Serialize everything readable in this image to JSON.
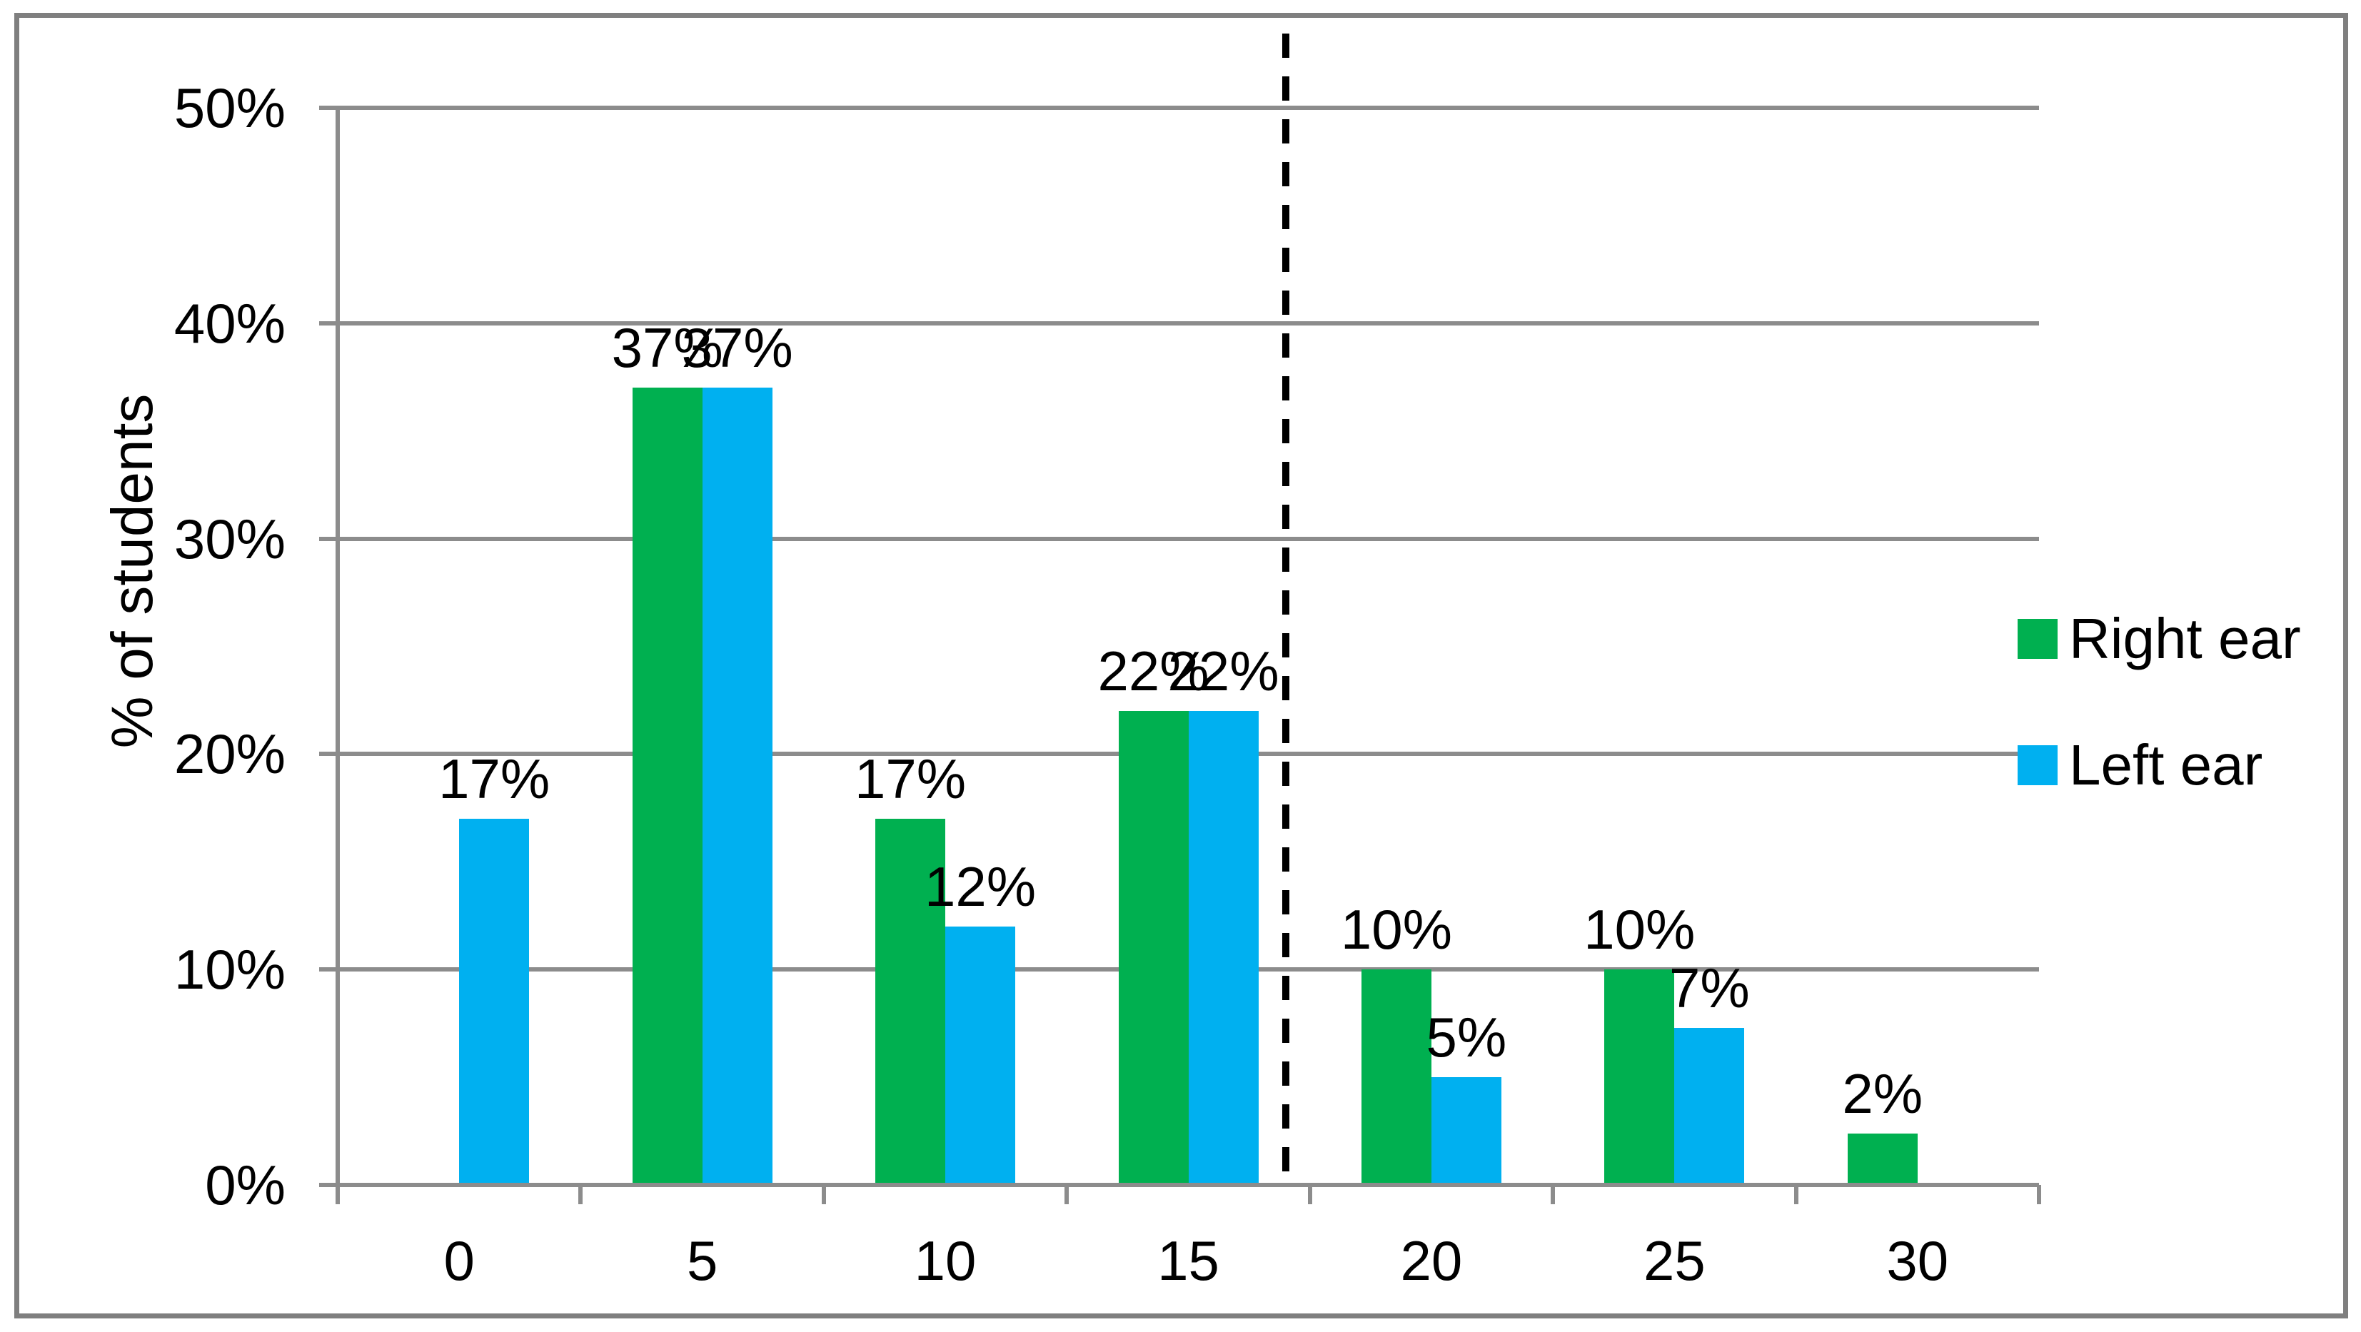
{
  "chart_data": {
    "type": "bar",
    "title": "",
    "xlabel": "",
    "ylabel": "% of students",
    "categories": [
      0,
      5,
      10,
      15,
      20,
      25,
      30
    ],
    "x_tick_labels": [
      "0",
      "5",
      "10",
      "15",
      "20",
      "25",
      "30"
    ],
    "series": [
      {
        "name": "Right ear",
        "color": "#00B050",
        "values": [
          null,
          37,
          17,
          22,
          10,
          10,
          2
        ],
        "labels": [
          "",
          "37%",
          "17%",
          "22%",
          "10%",
          "10%",
          "2%"
        ],
        "render_values": [
          0,
          37,
          17,
          22,
          10,
          10,
          2.4
        ]
      },
      {
        "name": "Left ear",
        "color": "#00B0F0",
        "values": [
          17,
          37,
          12,
          22,
          5,
          7,
          null
        ],
        "labels": [
          "17%",
          "37%",
          "12%",
          "22%",
          "5%",
          "7%",
          ""
        ],
        "render_values": [
          17,
          37,
          12,
          22,
          5,
          7.3,
          0
        ]
      }
    ],
    "y_axis": {
      "min": 0,
      "max": 50,
      "step": 10,
      "tick_labels": [
        "0%",
        "10%",
        "20%",
        "30%",
        "40%",
        "50%"
      ]
    },
    "reference_line": {
      "x_value": 17,
      "style": "dashed",
      "color": "#000000"
    },
    "legend": {
      "position": "right",
      "entries": [
        "Right ear",
        "Left ear"
      ]
    },
    "grid": true
  },
  "colors": {
    "grid": "#8C8C8C",
    "axis": "#8C8C8C",
    "frame_border": "#7F7F7F",
    "background": "#FFFFFF",
    "text": "#000000",
    "right_ear": "#00B050",
    "left_ear": "#00B0F0",
    "reference_line": "#000000"
  }
}
